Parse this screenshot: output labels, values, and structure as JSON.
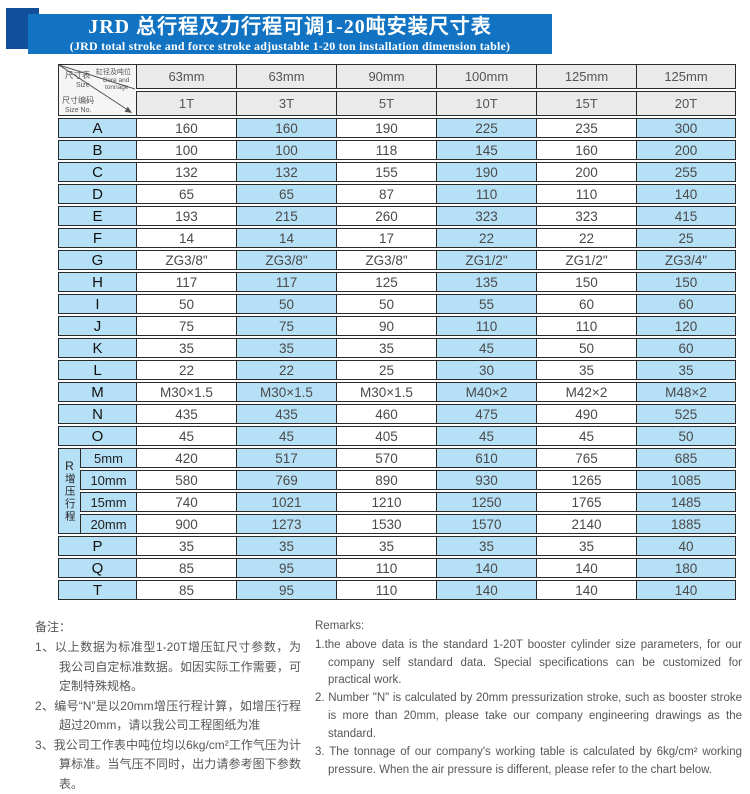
{
  "title": {
    "line1": "JRD 总行程及力行程可调1-20吨安装尺寸表",
    "line2": "(JRD total stroke and force stroke adjustable 1-20 ton installation dimension table)"
  },
  "colors": {
    "banner_blue": "#1173c2",
    "ribbon_dark_blue": "#124f9b",
    "cell_blue": "#b6e0f6",
    "header_gray": "#eaeaea",
    "grid_line": "#2b2b2b"
  },
  "table": {
    "corner": {
      "size_zh": "尺寸表",
      "size_en": "Size",
      "bore_zh": "缸径及吨位",
      "bore_en1": "Bore and",
      "bore_en2": "tonnage",
      "sizeno_zh": "尺寸编码",
      "sizeno_en": "Size No."
    },
    "columns": [
      {
        "bore": "63mm",
        "tonnage": "1T"
      },
      {
        "bore": "63mm",
        "tonnage": "3T"
      },
      {
        "bore": "90mm",
        "tonnage": "5T"
      },
      {
        "bore": "100mm",
        "tonnage": "10T"
      },
      {
        "bore": "125mm",
        "tonnage": "15T"
      },
      {
        "bore": "125mm",
        "tonnage": "20T"
      }
    ],
    "rows_top": [
      {
        "label": "A",
        "values": [
          "160",
          "160",
          "190",
          "225",
          "235",
          "300"
        ]
      },
      {
        "label": "B",
        "values": [
          "100",
          "100",
          "118",
          "145",
          "160",
          "200"
        ]
      },
      {
        "label": "C",
        "values": [
          "132",
          "132",
          "155",
          "190",
          "200",
          "255"
        ]
      },
      {
        "label": "D",
        "values": [
          "65",
          "65",
          "87",
          "110",
          "110",
          "140"
        ]
      },
      {
        "label": "E",
        "values": [
          "193",
          "215",
          "260",
          "323",
          "323",
          "415"
        ]
      },
      {
        "label": "F",
        "values": [
          "14",
          "14",
          "17",
          "22",
          "22",
          "25"
        ]
      },
      {
        "label": "G",
        "values": [
          "ZG3/8\"",
          "ZG3/8\"",
          "ZG3/8\"",
          "ZG1/2\"",
          "ZG1/2\"",
          "ZG3/4\""
        ]
      },
      {
        "label": "H",
        "values": [
          "117",
          "117",
          "125",
          "135",
          "150",
          "150"
        ]
      },
      {
        "label": "I",
        "values": [
          "50",
          "50",
          "50",
          "55",
          "60",
          "60"
        ]
      },
      {
        "label": "J",
        "values": [
          "75",
          "75",
          "90",
          "110",
          "110",
          "120"
        ]
      },
      {
        "label": "K",
        "values": [
          "35",
          "35",
          "35",
          "45",
          "50",
          "60"
        ]
      },
      {
        "label": "L",
        "values": [
          "22",
          "22",
          "25",
          "30",
          "35",
          "35"
        ]
      },
      {
        "label": "M",
        "values": [
          "M30×1.5",
          "M30×1.5",
          "M30×1.5",
          "M40×2",
          "M42×2",
          "M48×2"
        ]
      },
      {
        "label": "N",
        "values": [
          "435",
          "435",
          "460",
          "475",
          "490",
          "525"
        ]
      },
      {
        "label": "O",
        "values": [
          "45",
          "45",
          "405",
          "45",
          "45",
          "50"
        ]
      }
    ],
    "r_section": {
      "label": "R",
      "vertical": "增压行程",
      "rows": [
        {
          "sub": "5mm",
          "values": [
            "420",
            "517",
            "570",
            "610",
            "765",
            "685"
          ]
        },
        {
          "sub": "10mm",
          "values": [
            "580",
            "769",
            "890",
            "930",
            "1265",
            "1085"
          ]
        },
        {
          "sub": "15mm",
          "values": [
            "740",
            "1021",
            "1210",
            "1250",
            "1765",
            "1485"
          ]
        },
        {
          "sub": "20mm",
          "values": [
            "900",
            "1273",
            "1530",
            "1570",
            "2140",
            "1885"
          ]
        }
      ]
    },
    "rows_bottom": [
      {
        "label": "P",
        "values": [
          "35",
          "35",
          "35",
          "35",
          "35",
          "40"
        ]
      },
      {
        "label": "Q",
        "values": [
          "85",
          "95",
          "110",
          "140",
          "140",
          "180"
        ]
      },
      {
        "label": "T",
        "values": [
          "85",
          "95",
          "110",
          "140",
          "140",
          "140"
        ]
      }
    ]
  },
  "remarks_zh": {
    "heading": "备注：",
    "items": [
      "1、以上数据为标准型1-20T增压缸尺寸参数，为我公司自定标准数据。如因实际工作需要，可定制特殊规格。",
      "2、编号“N”是以20mm增压行程计算，如增压行程超过20mm，请以我公司工程图纸为准",
      "3、我公司工作表中吨位均以6kg/cm²工作气压为计算标准。当气压不同时，出力请参考图下参数表。"
    ]
  },
  "remarks_en": {
    "heading": "Remarks:",
    "items": [
      "1.the above data is the standard 1-20T booster cylinder size parameters, for our company self standard data. Special specifications can be customized for practical work.",
      "2. Number \"N\" is calculated by 20mm pressurization stroke, such as booster stroke is more than 20mm, please take our company engineering drawings as the standard.",
      "3. The tonnage of our company's working table is calculated by 6kg/cm² working pressure. When the air pressure is different, please refer to the chart below."
    ]
  }
}
